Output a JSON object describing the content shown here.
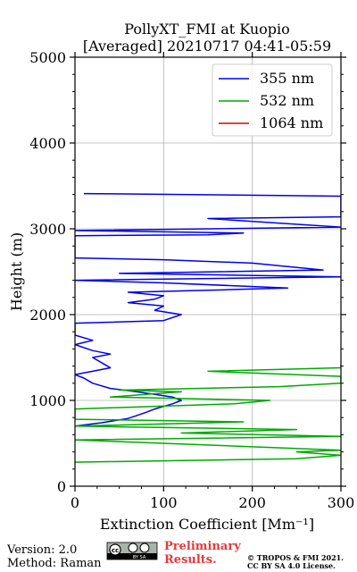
{
  "chart_data": {
    "type": "line",
    "title_line1": "PollyXT_FMI at Kuopio",
    "title_line2": "[Averaged] 20210717 04:41-05:59",
    "xlabel": "Extinction Coefficient [Mm⁻¹]",
    "ylabel": "Height (m)",
    "xlim": [
      0,
      300
    ],
    "ylim": [
      0,
      5000
    ],
    "x_ticks": [
      0,
      100,
      200,
      300
    ],
    "y_ticks": [
      0,
      1000,
      2000,
      3000,
      4000,
      5000
    ],
    "grid": true,
    "legend_position": "top-right",
    "series": [
      {
        "name": "355 nm",
        "color": "#0000ee",
        "points": [
          [
            0,
            700
          ],
          [
            30,
            740
          ],
          [
            60,
            790
          ],
          [
            80,
            860
          ],
          [
            90,
            900
          ],
          [
            100,
            930
          ],
          [
            110,
            960
          ],
          [
            120,
            1000
          ],
          [
            110,
            1040
          ],
          [
            90,
            1070
          ],
          [
            70,
            1100
          ],
          [
            40,
            1140
          ],
          [
            20,
            1200
          ],
          [
            10,
            1260
          ],
          [
            0,
            1300
          ],
          [
            20,
            1340
          ],
          [
            40,
            1380
          ],
          [
            30,
            1440
          ],
          [
            20,
            1500
          ],
          [
            40,
            1540
          ],
          [
            20,
            1580
          ],
          [
            0,
            1650
          ],
          [
            20,
            1700
          ],
          [
            0,
            1760
          ],
          [
            0,
            1900
          ],
          [
            100,
            1930
          ],
          [
            120,
            2000
          ],
          [
            90,
            2050
          ],
          [
            100,
            2100
          ],
          [
            60,
            2140
          ],
          [
            90,
            2180
          ],
          [
            100,
            2220
          ],
          [
            60,
            2260
          ],
          [
            170,
            2290
          ],
          [
            240,
            2310
          ],
          [
            100,
            2370
          ],
          [
            0,
            2400
          ],
          [
            300,
            2440
          ],
          [
            50,
            2480
          ],
          [
            280,
            2520
          ],
          [
            200,
            2600
          ],
          [
            100,
            2640
          ],
          [
            0,
            2660
          ],
          [
            0,
            2920
          ],
          [
            150,
            2930
          ],
          [
            190,
            2950
          ],
          [
            0,
            2980
          ],
          [
            300,
            3020
          ],
          [
            150,
            3120
          ],
          [
            300,
            3140
          ],
          [
            300,
            3380
          ],
          [
            220,
            3390
          ],
          [
            10,
            3410
          ]
        ]
      },
      {
        "name": "532 nm",
        "color": "#00aa00",
        "points": [
          [
            0,
            280
          ],
          [
            250,
            320
          ],
          [
            300,
            360
          ],
          [
            250,
            400
          ],
          [
            300,
            420
          ],
          [
            0,
            540
          ],
          [
            300,
            580
          ],
          [
            120,
            620
          ],
          [
            250,
            660
          ],
          [
            0,
            700
          ],
          [
            190,
            750
          ],
          [
            0,
            780
          ],
          [
            0,
            900
          ],
          [
            180,
            960
          ],
          [
            220,
            1000
          ],
          [
            40,
            1040
          ],
          [
            80,
            1070
          ],
          [
            120,
            1100
          ],
          [
            50,
            1120
          ],
          [
            230,
            1160
          ],
          [
            300,
            1200
          ],
          [
            300,
            1280
          ],
          [
            150,
            1340
          ],
          [
            300,
            1380
          ],
          [
            300,
            1420
          ]
        ]
      },
      {
        "name": "1064 nm",
        "color": "#dd0000",
        "points": []
      }
    ]
  },
  "footer": {
    "version": "Version: 2.0",
    "method": "Method: Raman",
    "preliminary_line1": "Preliminary",
    "preliminary_line2": "Results.",
    "copyright_line1": "© TROPOS & FMI 2021.",
    "copyright_line2": "CC BY SA 4.0 License.",
    "cc_badge_text": "BY  SA"
  }
}
